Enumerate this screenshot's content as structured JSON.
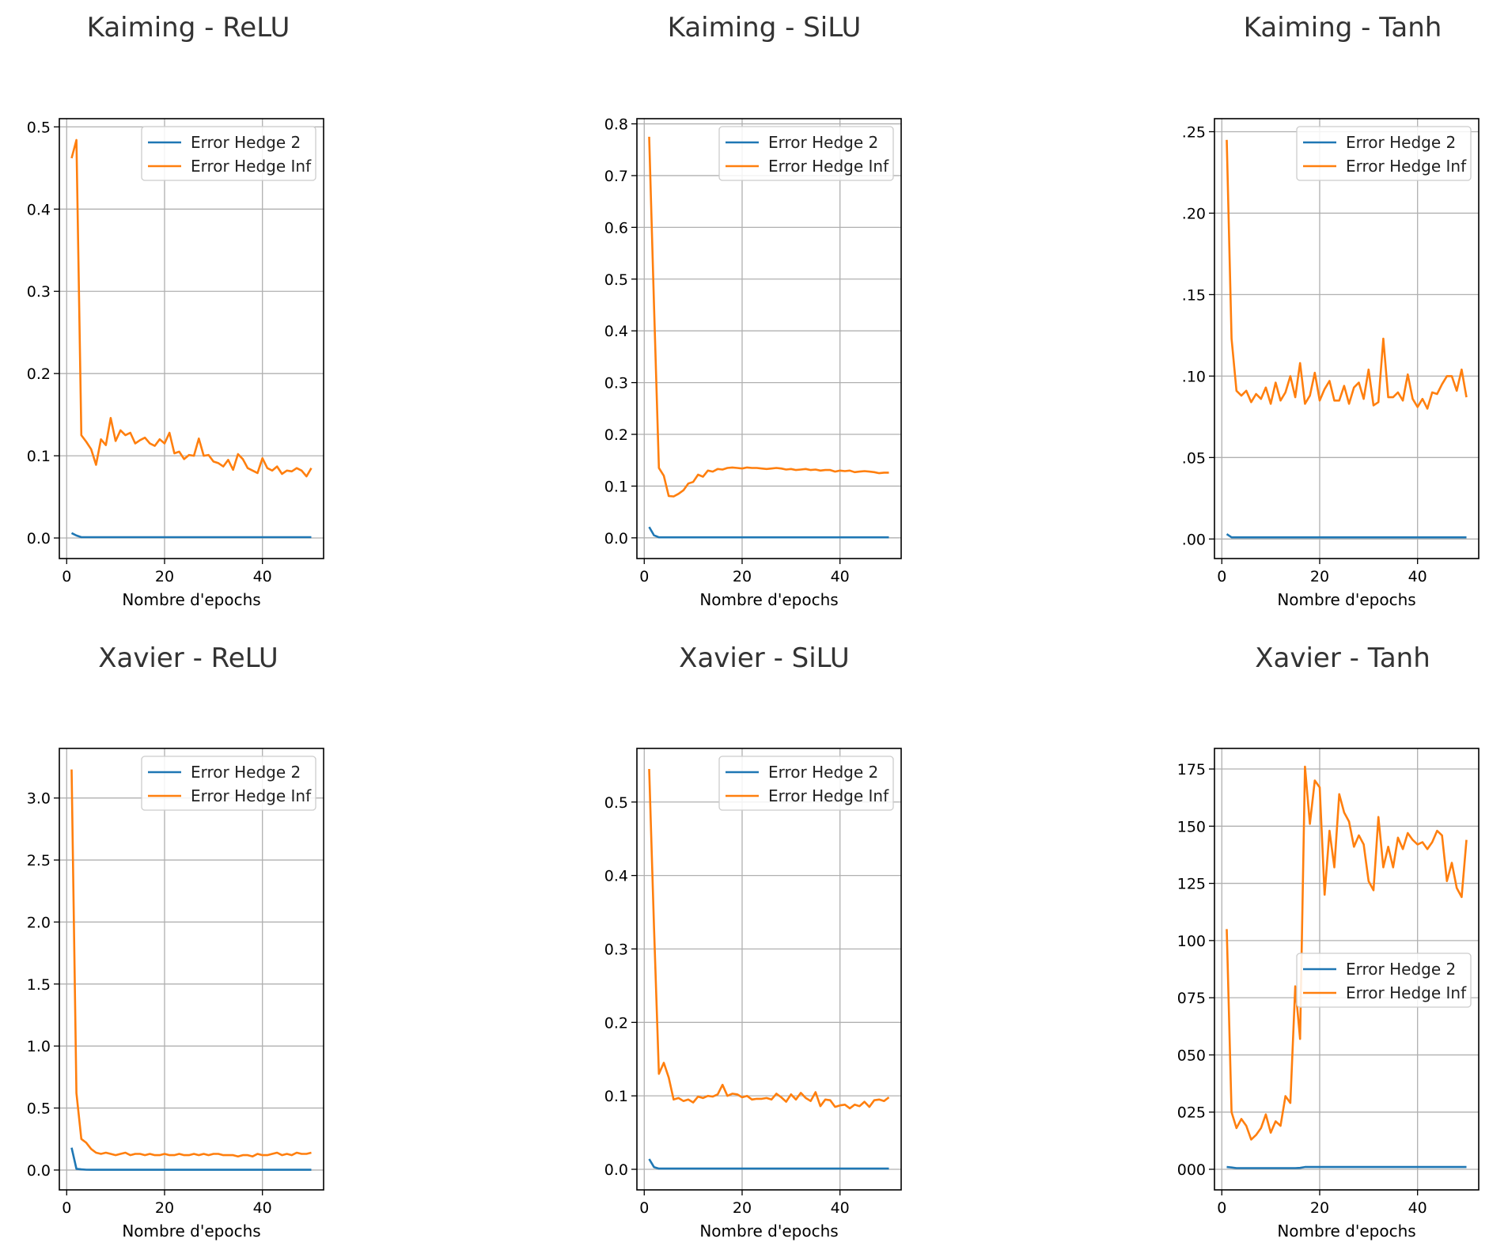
{
  "colors": {
    "series_1": "#1f77b4",
    "series_2": "#ff7f0e",
    "grid": "#b0b0b0",
    "axes": "#000000",
    "title": "#333333"
  },
  "chart_data": [
    {
      "type": "line",
      "title": "Kaiming - ReLU",
      "xlabel": "Nombre d'epochs",
      "ylabel": "",
      "xlim": [
        -1.5,
        52.5
      ],
      "ylim": [
        -0.025,
        0.51
      ],
      "xticks": [
        0,
        20,
        40
      ],
      "yticks": [
        0.0,
        0.1,
        0.2,
        0.3,
        0.4,
        0.5
      ],
      "ytick_labels": [
        "0.0",
        "0.1",
        "0.2",
        "0.3",
        "0.4",
        "0.5"
      ],
      "grid": true,
      "legend": "upper right",
      "x": [
        1,
        2,
        3,
        4,
        5,
        6,
        7,
        8,
        9,
        10,
        11,
        12,
        13,
        14,
        15,
        16,
        17,
        18,
        19,
        20,
        21,
        22,
        23,
        24,
        25,
        26,
        27,
        28,
        29,
        30,
        31,
        32,
        33,
        34,
        35,
        36,
        37,
        38,
        39,
        40,
        41,
        42,
        43,
        44,
        45,
        46,
        47,
        48,
        49,
        50
      ],
      "series": [
        {
          "name": "Error Hedge 2",
          "values": [
            0.006,
            0.003,
            0.001,
            0.001,
            0.001,
            0.001,
            0.001,
            0.001,
            0.001,
            0.001,
            0.001,
            0.001,
            0.001,
            0.001,
            0.001,
            0.001,
            0.001,
            0.001,
            0.001,
            0.001,
            0.001,
            0.001,
            0.001,
            0.001,
            0.001,
            0.001,
            0.001,
            0.001,
            0.001,
            0.001,
            0.001,
            0.001,
            0.001,
            0.001,
            0.001,
            0.001,
            0.001,
            0.001,
            0.001,
            0.001,
            0.001,
            0.001,
            0.001,
            0.001,
            0.001,
            0.001,
            0.001,
            0.001,
            0.001,
            0.001
          ]
        },
        {
          "name": "Error Hedge Inf",
          "values": [
            0.462,
            0.484,
            0.125,
            0.117,
            0.108,
            0.089,
            0.12,
            0.113,
            0.146,
            0.118,
            0.131,
            0.125,
            0.128,
            0.115,
            0.119,
            0.122,
            0.115,
            0.112,
            0.12,
            0.115,
            0.128,
            0.103,
            0.105,
            0.096,
            0.101,
            0.1,
            0.121,
            0.1,
            0.101,
            0.093,
            0.091,
            0.087,
            0.095,
            0.083,
            0.102,
            0.096,
            0.085,
            0.082,
            0.079,
            0.097,
            0.085,
            0.082,
            0.087,
            0.078,
            0.082,
            0.081,
            0.085,
            0.082,
            0.075,
            0.085
          ]
        }
      ]
    },
    {
      "type": "line",
      "title": "Kaiming - SiLU",
      "xlabel": "Nombre d'epochs",
      "ylabel": "",
      "xlim": [
        -1.5,
        52.5
      ],
      "ylim": [
        -0.04,
        0.81
      ],
      "xticks": [
        0,
        20,
        40
      ],
      "yticks": [
        0.0,
        0.1,
        0.2,
        0.3,
        0.4,
        0.5,
        0.6,
        0.7,
        0.8
      ],
      "ytick_labels": [
        "0.0",
        "0.1",
        "0.2",
        "0.3",
        "0.4",
        "0.5",
        "0.6",
        "0.7",
        "0.8"
      ],
      "grid": true,
      "legend": "upper right",
      "x": [
        1,
        2,
        3,
        4,
        5,
        6,
        7,
        8,
        9,
        10,
        11,
        12,
        13,
        14,
        15,
        16,
        17,
        18,
        19,
        20,
        21,
        22,
        23,
        24,
        25,
        26,
        27,
        28,
        29,
        30,
        31,
        32,
        33,
        34,
        35,
        36,
        37,
        38,
        39,
        40,
        41,
        42,
        43,
        44,
        45,
        46,
        47,
        48,
        49,
        50
      ],
      "series": [
        {
          "name": "Error Hedge 2",
          "values": [
            0.021,
            0.005,
            0.001,
            0.001,
            0.001,
            0.001,
            0.001,
            0.001,
            0.001,
            0.001,
            0.001,
            0.001,
            0.001,
            0.001,
            0.001,
            0.001,
            0.001,
            0.001,
            0.001,
            0.001,
            0.001,
            0.001,
            0.001,
            0.001,
            0.001,
            0.001,
            0.001,
            0.001,
            0.001,
            0.001,
            0.001,
            0.001,
            0.001,
            0.001,
            0.001,
            0.001,
            0.001,
            0.001,
            0.001,
            0.001,
            0.001,
            0.001,
            0.001,
            0.001,
            0.001,
            0.001,
            0.001,
            0.001,
            0.001,
            0.001
          ]
        },
        {
          "name": "Error Hedge Inf",
          "values": [
            0.775,
            0.45,
            0.135,
            0.12,
            0.081,
            0.08,
            0.085,
            0.092,
            0.105,
            0.108,
            0.122,
            0.118,
            0.13,
            0.128,
            0.133,
            0.132,
            0.135,
            0.136,
            0.135,
            0.134,
            0.136,
            0.135,
            0.135,
            0.134,
            0.133,
            0.134,
            0.135,
            0.134,
            0.132,
            0.133,
            0.131,
            0.132,
            0.133,
            0.131,
            0.132,
            0.13,
            0.131,
            0.131,
            0.128,
            0.13,
            0.129,
            0.13,
            0.127,
            0.128,
            0.129,
            0.128,
            0.127,
            0.125,
            0.126,
            0.126
          ]
        }
      ]
    },
    {
      "type": "line",
      "title": "Kaiming - Tanh",
      "xlabel": "Nombre d'epochs",
      "ylabel": "",
      "xlim": [
        -1.5,
        52.5
      ],
      "ylim": [
        -0.012,
        0.258
      ],
      "xticks": [
        0,
        20,
        40
      ],
      "yticks": [
        0.0,
        0.05,
        0.1,
        0.15,
        0.2,
        0.25
      ],
      "ytick_labels": [
        ".00",
        ".05",
        ".10",
        ".15",
        ".20",
        ".25"
      ],
      "grid": true,
      "legend": "upper right",
      "x": [
        1,
        2,
        3,
        4,
        5,
        6,
        7,
        8,
        9,
        10,
        11,
        12,
        13,
        14,
        15,
        16,
        17,
        18,
        19,
        20,
        21,
        22,
        23,
        24,
        25,
        26,
        27,
        28,
        29,
        30,
        31,
        32,
        33,
        34,
        35,
        36,
        37,
        38,
        39,
        40,
        41,
        42,
        43,
        44,
        45,
        46,
        47,
        48,
        49,
        50
      ],
      "series": [
        {
          "name": "Error Hedge 2",
          "values": [
            0.003,
            0.001,
            0.001,
            0.001,
            0.001,
            0.001,
            0.001,
            0.001,
            0.001,
            0.001,
            0.001,
            0.001,
            0.001,
            0.001,
            0.001,
            0.001,
            0.001,
            0.001,
            0.001,
            0.001,
            0.001,
            0.001,
            0.001,
            0.001,
            0.001,
            0.001,
            0.001,
            0.001,
            0.001,
            0.001,
            0.001,
            0.001,
            0.001,
            0.001,
            0.001,
            0.001,
            0.001,
            0.001,
            0.001,
            0.001,
            0.001,
            0.001,
            0.001,
            0.001,
            0.001,
            0.001,
            0.001,
            0.001,
            0.001,
            0.001
          ]
        },
        {
          "name": "Error Hedge Inf",
          "values": [
            0.245,
            0.123,
            0.091,
            0.088,
            0.091,
            0.084,
            0.089,
            0.086,
            0.093,
            0.083,
            0.096,
            0.085,
            0.09,
            0.1,
            0.087,
            0.108,
            0.083,
            0.088,
            0.102,
            0.085,
            0.092,
            0.097,
            0.085,
            0.085,
            0.094,
            0.083,
            0.093,
            0.096,
            0.086,
            0.104,
            0.082,
            0.084,
            0.123,
            0.087,
            0.087,
            0.09,
            0.085,
            0.101,
            0.086,
            0.081,
            0.086,
            0.08,
            0.09,
            0.089,
            0.095,
            0.1,
            0.1,
            0.091,
            0.104,
            0.087
          ]
        }
      ]
    },
    {
      "type": "line",
      "title": "Xavier - ReLU",
      "xlabel": "Nombre d'epochs",
      "ylabel": "",
      "xlim": [
        -1.5,
        52.5
      ],
      "ylim": [
        -0.16,
        3.4
      ],
      "xticks": [
        0,
        20,
        40
      ],
      "yticks": [
        0.0,
        0.5,
        1.0,
        1.5,
        2.0,
        2.5,
        3.0
      ],
      "ytick_labels": [
        "0.0",
        "0.5",
        "1.0",
        "1.5",
        "2.0",
        "2.5",
        "3.0"
      ],
      "grid": true,
      "legend": "upper right",
      "x": [
        1,
        2,
        3,
        4,
        5,
        6,
        7,
        8,
        9,
        10,
        11,
        12,
        13,
        14,
        15,
        16,
        17,
        18,
        19,
        20,
        21,
        22,
        23,
        24,
        25,
        26,
        27,
        28,
        29,
        30,
        31,
        32,
        33,
        34,
        35,
        36,
        37,
        38,
        39,
        40,
        41,
        42,
        43,
        44,
        45,
        46,
        47,
        48,
        49,
        50
      ],
      "series": [
        {
          "name": "Error Hedge 2",
          "values": [
            0.18,
            0.01,
            0.005,
            0.003,
            0.002,
            0.002,
            0.002,
            0.002,
            0.002,
            0.002,
            0.002,
            0.002,
            0.002,
            0.002,
            0.002,
            0.002,
            0.002,
            0.002,
            0.002,
            0.002,
            0.002,
            0.002,
            0.002,
            0.002,
            0.002,
            0.002,
            0.002,
            0.002,
            0.002,
            0.002,
            0.002,
            0.002,
            0.002,
            0.002,
            0.002,
            0.002,
            0.002,
            0.002,
            0.002,
            0.002,
            0.002,
            0.002,
            0.002,
            0.002,
            0.002,
            0.002,
            0.002,
            0.002,
            0.002,
            0.002
          ]
        },
        {
          "name": "Error Hedge Inf",
          "values": [
            3.23,
            0.62,
            0.25,
            0.22,
            0.17,
            0.14,
            0.13,
            0.14,
            0.13,
            0.12,
            0.13,
            0.14,
            0.12,
            0.13,
            0.13,
            0.12,
            0.13,
            0.12,
            0.12,
            0.13,
            0.12,
            0.12,
            0.13,
            0.12,
            0.12,
            0.13,
            0.12,
            0.13,
            0.12,
            0.13,
            0.13,
            0.12,
            0.12,
            0.12,
            0.11,
            0.12,
            0.12,
            0.11,
            0.13,
            0.12,
            0.12,
            0.13,
            0.14,
            0.12,
            0.13,
            0.12,
            0.14,
            0.13,
            0.13,
            0.14
          ]
        }
      ]
    },
    {
      "type": "line",
      "title": "Xavier - SiLU",
      "xlabel": "Nombre d'epochs",
      "ylabel": "",
      "xlim": [
        -1.5,
        52.5
      ],
      "ylim": [
        -0.028,
        0.573
      ],
      "xticks": [
        0,
        20,
        40
      ],
      "yticks": [
        0.0,
        0.1,
        0.2,
        0.3,
        0.4,
        0.5
      ],
      "ytick_labels": [
        "0.0",
        "0.1",
        "0.2",
        "0.3",
        "0.4",
        "0.5"
      ],
      "grid": true,
      "legend": "upper right",
      "x": [
        1,
        2,
        3,
        4,
        5,
        6,
        7,
        8,
        9,
        10,
        11,
        12,
        13,
        14,
        15,
        16,
        17,
        18,
        19,
        20,
        21,
        22,
        23,
        24,
        25,
        26,
        27,
        28,
        29,
        30,
        31,
        32,
        33,
        34,
        35,
        36,
        37,
        38,
        39,
        40,
        41,
        42,
        43,
        44,
        45,
        46,
        47,
        48,
        49,
        50
      ],
      "series": [
        {
          "name": "Error Hedge 2",
          "values": [
            0.014,
            0.003,
            0.001,
            0.001,
            0.001,
            0.001,
            0.001,
            0.001,
            0.001,
            0.001,
            0.001,
            0.001,
            0.001,
            0.001,
            0.001,
            0.001,
            0.001,
            0.001,
            0.001,
            0.001,
            0.001,
            0.001,
            0.001,
            0.001,
            0.001,
            0.001,
            0.001,
            0.001,
            0.001,
            0.001,
            0.001,
            0.001,
            0.001,
            0.001,
            0.001,
            0.001,
            0.001,
            0.001,
            0.001,
            0.001,
            0.001,
            0.001,
            0.001,
            0.001,
            0.001,
            0.001,
            0.001,
            0.001,
            0.001,
            0.001
          ]
        },
        {
          "name": "Error Hedge Inf",
          "values": [
            0.545,
            0.33,
            0.13,
            0.145,
            0.125,
            0.095,
            0.097,
            0.093,
            0.095,
            0.091,
            0.099,
            0.097,
            0.1,
            0.099,
            0.102,
            0.115,
            0.1,
            0.103,
            0.102,
            0.098,
            0.1,
            0.095,
            0.096,
            0.096,
            0.097,
            0.095,
            0.103,
            0.098,
            0.092,
            0.102,
            0.095,
            0.104,
            0.097,
            0.093,
            0.105,
            0.086,
            0.095,
            0.094,
            0.085,
            0.087,
            0.088,
            0.083,
            0.088,
            0.086,
            0.092,
            0.085,
            0.094,
            0.095,
            0.093,
            0.098
          ]
        }
      ]
    },
    {
      "type": "line",
      "title": "Xavier - Tanh",
      "xlabel": "Nombre d'epochs",
      "ylabel": "",
      "xlim": [
        -1.5,
        52.5
      ],
      "ylim": [
        -0.009,
        0.184
      ],
      "xticks": [
        0,
        20,
        40
      ],
      "yticks": [
        0.0,
        0.025,
        0.05,
        0.075,
        0.1,
        0.125,
        0.15,
        0.175
      ],
      "ytick_labels": [
        "000",
        "025",
        "050",
        "075",
        "100",
        "125",
        "150",
        "175"
      ],
      "grid": true,
      "legend": "center right",
      "x": [
        1,
        2,
        3,
        4,
        5,
        6,
        7,
        8,
        9,
        10,
        11,
        12,
        13,
        14,
        15,
        16,
        17,
        18,
        19,
        20,
        21,
        22,
        23,
        24,
        25,
        26,
        27,
        28,
        29,
        30,
        31,
        32,
        33,
        34,
        35,
        36,
        37,
        38,
        39,
        40,
        41,
        42,
        43,
        44,
        45,
        46,
        47,
        48,
        49,
        50
      ],
      "series": [
        {
          "name": "Error Hedge 2",
          "values": [
            0.001,
            0.0008,
            0.0005,
            0.0005,
            0.0005,
            0.0005,
            0.0005,
            0.0005,
            0.0005,
            0.0005,
            0.0005,
            0.0005,
            0.0005,
            0.0005,
            0.0005,
            0.0006,
            0.001,
            0.001,
            0.001,
            0.001,
            0.001,
            0.001,
            0.001,
            0.001,
            0.001,
            0.001,
            0.001,
            0.001,
            0.001,
            0.001,
            0.001,
            0.001,
            0.001,
            0.001,
            0.001,
            0.001,
            0.001,
            0.001,
            0.001,
            0.001,
            0.001,
            0.001,
            0.001,
            0.001,
            0.001,
            0.001,
            0.001,
            0.001,
            0.001,
            0.001
          ]
        },
        {
          "name": "Error Hedge Inf",
          "values": [
            0.105,
            0.025,
            0.018,
            0.022,
            0.019,
            0.013,
            0.015,
            0.018,
            0.024,
            0.016,
            0.021,
            0.019,
            0.032,
            0.029,
            0.08,
            0.057,
            0.176,
            0.151,
            0.17,
            0.167,
            0.12,
            0.148,
            0.132,
            0.164,
            0.156,
            0.152,
            0.141,
            0.146,
            0.142,
            0.126,
            0.122,
            0.154,
            0.132,
            0.141,
            0.132,
            0.145,
            0.14,
            0.147,
            0.144,
            0.142,
            0.143,
            0.14,
            0.143,
            0.148,
            0.146,
            0.126,
            0.134,
            0.123,
            0.119,
            0.144
          ]
        }
      ]
    }
  ]
}
